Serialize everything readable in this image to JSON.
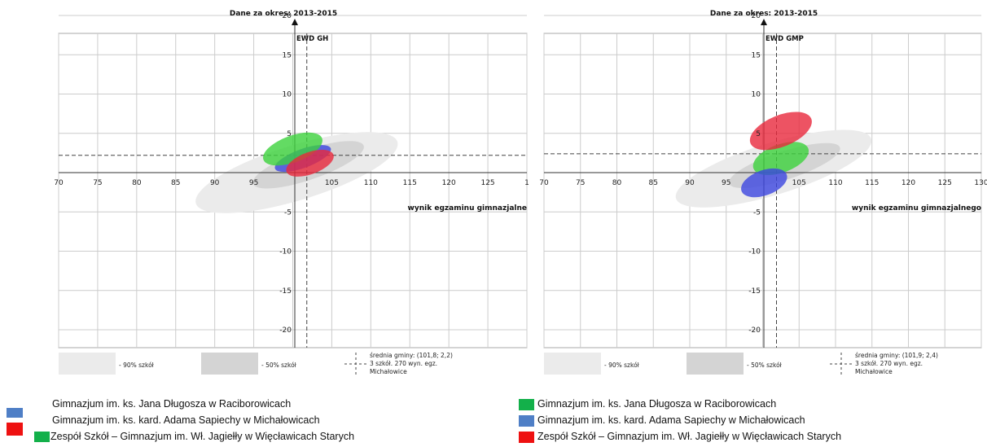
{
  "colors": {
    "grid": "#cccccc",
    "frame": "#aaaaaa",
    "ell90": "#ebebeb",
    "ell50": "#d4d4d4",
    "blue": "#3c46e0",
    "red": "#e8283c",
    "green": "#3cd23c",
    "legend_blue": "#4f7fc6",
    "legend_red": "#ee1111",
    "legend_green": "#13b04a"
  },
  "chart_data": [
    {
      "type": "scatter",
      "title": "Dane za okres: 2013-2015",
      "ylabel": "EWD GH",
      "xlabel": "wynik egzaminu gimnazjalne",
      "xlim": [
        70,
        130
      ],
      "ylim": [
        -20,
        20
      ],
      "x_ticks": [
        "70",
        "75",
        "80",
        "85",
        "90",
        "95",
        "",
        "105",
        "110",
        "115",
        "120",
        "125",
        "1"
      ],
      "y_ticks": [
        {
          "value": 20,
          "label": "20"
        },
        {
          "value": 15,
          "label": "15"
        },
        {
          "value": 10,
          "label": "10"
        },
        {
          "value": 5,
          "label": "5"
        },
        {
          "value": -5,
          "label": "-5"
        },
        {
          "value": -10,
          "label": "-10"
        },
        {
          "value": -15,
          "label": "-15"
        },
        {
          "value": -20,
          "label": "-20"
        }
      ],
      "mean_line": {
        "x": 101.8,
        "y": 2.2
      },
      "background_ellipses": [
        {
          "band": "90%",
          "cx": 100.5,
          "cy": 0.0,
          "rx": 13.5,
          "ry": 3.5,
          "angle": 17
        },
        {
          "band": "50%",
          "cx": 102.0,
          "cy": 1.0,
          "rx": 7.5,
          "ry": 1.9,
          "angle": 19
        }
      ],
      "series": [
        {
          "color": "blue",
          "cx": 101.3,
          "cy": 1.8,
          "rx": 3.8,
          "ry": 1.2,
          "angle": 20
        },
        {
          "color": "green",
          "cx": 100.0,
          "cy": 3.0,
          "rx": 4.0,
          "ry": 1.7,
          "angle": 20
        },
        {
          "color": "red",
          "cx": 102.2,
          "cy": 1.2,
          "rx": 3.2,
          "ry": 1.4,
          "angle": 20
        }
      ],
      "legend_labels": {
        "p90": "- 90% szkół",
        "p50": "- 50% szkół",
        "mean_1": "średnia gminy: (101,8; 2,2)",
        "mean_2": "3 szkół. 270 wyn. egz.",
        "mean_3": "Michałowice"
      }
    },
    {
      "type": "scatter",
      "title": "Dane za okres: 2013-2015",
      "ylabel": "EWD GMP",
      "xlabel": "wynik egzaminu gimnazjalnego",
      "xlim": [
        70,
        130
      ],
      "ylim": [
        -20,
        20
      ],
      "x_ticks": [
        "70",
        "75",
        "80",
        "85",
        "90",
        "95",
        "",
        "105",
        "110",
        "115",
        "120",
        "125",
        "130"
      ],
      "y_ticks": [
        {
          "value": 20,
          "label": "20"
        },
        {
          "value": 15,
          "label": "15"
        },
        {
          "value": 10,
          "label": "10"
        },
        {
          "value": 5,
          "label": "5"
        },
        {
          "value": -5,
          "label": "-5"
        },
        {
          "value": -10,
          "label": "-10"
        },
        {
          "value": -15,
          "label": "-15"
        },
        {
          "value": -20,
          "label": "-20"
        }
      ],
      "mean_line": {
        "x": 101.9,
        "y": 2.4
      },
      "background_ellipses": [
        {
          "band": "90%",
          "cx": 101.5,
          "cy": 0.5,
          "rx": 14.0,
          "ry": 3.3,
          "angle": 17
        },
        {
          "band": "50%",
          "cx": 103.0,
          "cy": 0.9,
          "rx": 8.0,
          "ry": 1.8,
          "angle": 18
        }
      ],
      "series": [
        {
          "color": "green",
          "cx": 102.5,
          "cy": 1.8,
          "rx": 4.0,
          "ry": 1.8,
          "angle": 20
        },
        {
          "color": "blue",
          "cx": 100.2,
          "cy": -1.3,
          "rx": 3.3,
          "ry": 1.6,
          "angle": 20
        },
        {
          "color": "red",
          "cx": 102.5,
          "cy": 5.3,
          "rx": 4.5,
          "ry": 2.0,
          "angle": 22
        }
      ],
      "legend_labels": {
        "p90": "- 90% szkół",
        "p50": "- 50% szkół",
        "mean_1": "średnia gminy: (101,9; 2,4)",
        "mean_2": "3 szkół. 270 wyn. egz.",
        "mean_3": "Michałowice"
      }
    }
  ],
  "school_legend": {
    "left": [
      {
        "color": "legend_blue",
        "label": "Gimnazjum im. ks. Jana Długosza w Raciborowicach"
      },
      {
        "color": "legend_red",
        "label": "Gimnazjum im. ks. kard. Adama Sapiechy w Michałowicach"
      },
      {
        "color": "legend_green",
        "label": "Zespół Szkół – Gimnazjum im. Wł. Jagiełły w Więcławicach Starych"
      }
    ],
    "right": [
      {
        "color": "legend_green",
        "label": "Gimnazjum im. ks. Jana Długosza w Raciborowicach"
      },
      {
        "color": "legend_blue",
        "label": "Gimnazjum im. ks. kard. Adama Sapiechy w Michałowicach"
      },
      {
        "color": "legend_red",
        "label": "Zespół Szkół – Gimnazjum im. Wł. Jagiełły w Więcławicach Starych"
      }
    ]
  }
}
